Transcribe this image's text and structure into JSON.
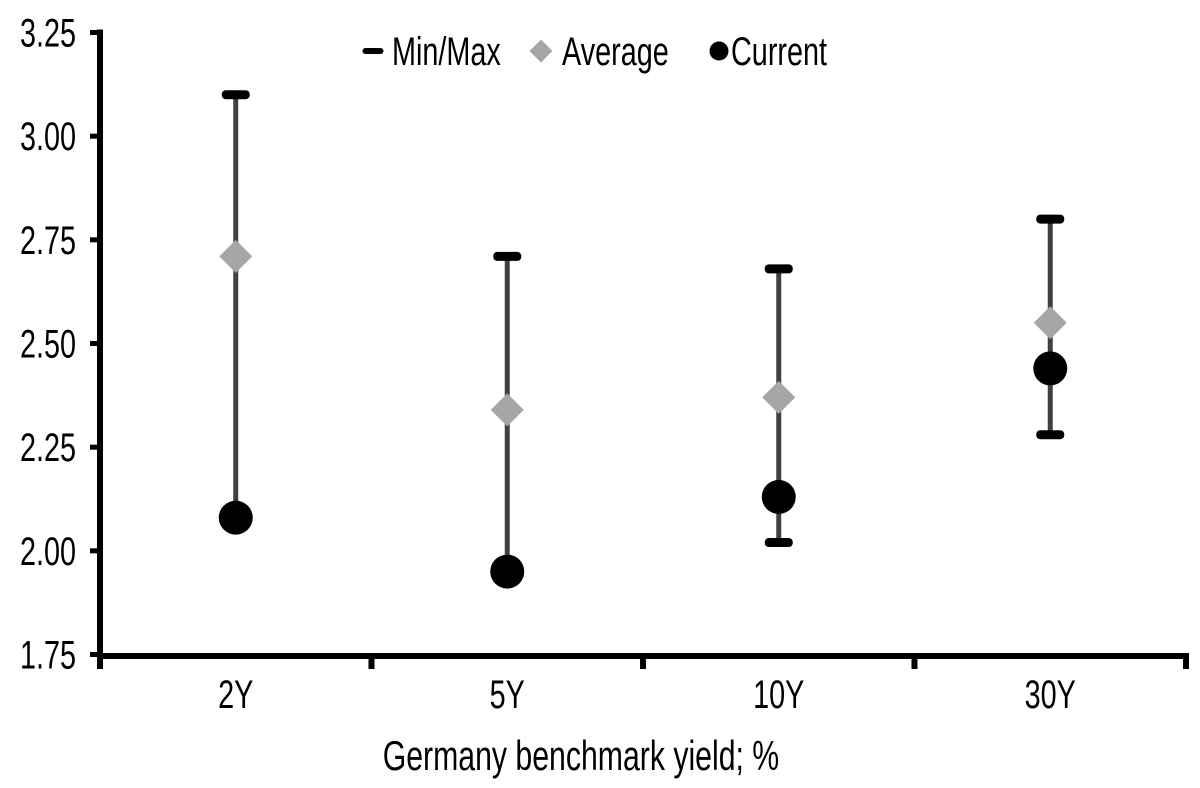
{
  "chart_data": {
    "type": "scatter",
    "subtype": "min-max-range-with-markers",
    "title": "",
    "xlabel": "Germany benchmark yield; %",
    "ylabel": "",
    "categories": [
      "2Y",
      "5Y",
      "10Y",
      "30Y"
    ],
    "series": [
      {
        "name": "Min/Max",
        "marker": "dash-cap",
        "max": [
          3.1,
          2.71,
          2.68,
          2.8
        ],
        "min": [
          2.08,
          1.95,
          2.02,
          2.28
        ]
      },
      {
        "name": "Average",
        "marker": "diamond",
        "values": [
          2.71,
          2.34,
          2.37,
          2.55
        ]
      },
      {
        "name": "Current",
        "marker": "circle",
        "values": [
          2.08,
          1.95,
          2.13,
          2.44
        ]
      }
    ],
    "y_axis": {
      "min": 1.75,
      "max": 3.25,
      "tick_step": 0.25,
      "ticks": [
        {
          "value": 3.25,
          "label": "3.25"
        },
        {
          "value": 3.0,
          "label": "3.00"
        },
        {
          "value": 2.75,
          "label": "2.75"
        },
        {
          "value": 2.5,
          "label": "2.50"
        },
        {
          "value": 2.25,
          "label": "2.25"
        },
        {
          "value": 2.0,
          "label": "2.00"
        },
        {
          "value": 1.75,
          "label": "1.75"
        }
      ]
    },
    "legend": {
      "position": "top-center",
      "items": [
        {
          "label": "Min/Max",
          "marker": "dash"
        },
        {
          "label": "Average",
          "marker": "diamond"
        },
        {
          "label": "Current",
          "marker": "circle"
        }
      ]
    },
    "grid": "off",
    "colors": {
      "axis": "#000000",
      "minmax": "#000000",
      "whisker": "#404040",
      "average": "#a6a6a6",
      "current": "#000000",
      "text": "#000000",
      "background": "#ffffff"
    }
  }
}
